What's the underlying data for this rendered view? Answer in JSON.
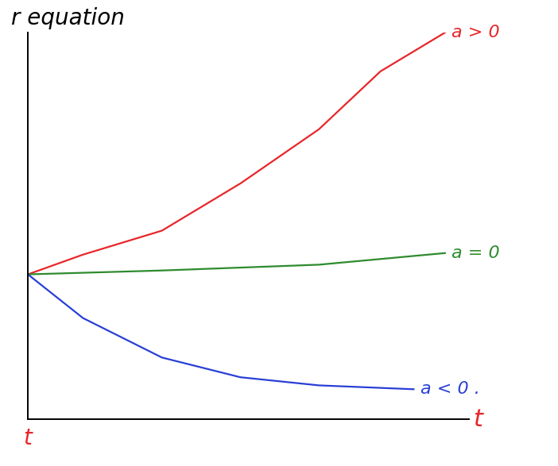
{
  "chart_data": {
    "type": "line",
    "title": "r equation",
    "xlabel": "t",
    "annotations": [
      "t"
    ],
    "xlim": [
      0,
      10
    ],
    "ylim": [
      0,
      10
    ],
    "xticks": [],
    "yticks": [],
    "tick_labels": false,
    "grid": false,
    "series": [
      {
        "name": "a > 0",
        "color": "#e8262a",
        "x": [
          0,
          1.25,
          3.04,
          4.82,
          6.6,
          8.0,
          9.46
        ],
        "values": [
          3.75,
          4.26,
          4.88,
          6.1,
          7.5,
          9.0,
          10.0
        ]
      },
      {
        "name": "a = 0",
        "color": "#2e8b2e",
        "x": [
          0,
          3.04,
          6.6,
          9.46
        ],
        "values": [
          3.75,
          3.85,
          4.0,
          4.3
        ]
      },
      {
        "name": "a < 0 .",
        "color": "#2a3fd6",
        "x": [
          0,
          1.25,
          3.04,
          4.82,
          6.6,
          8.75
        ],
        "values": [
          3.75,
          2.62,
          1.6,
          1.09,
          0.88,
          0.78
        ]
      }
    ]
  }
}
